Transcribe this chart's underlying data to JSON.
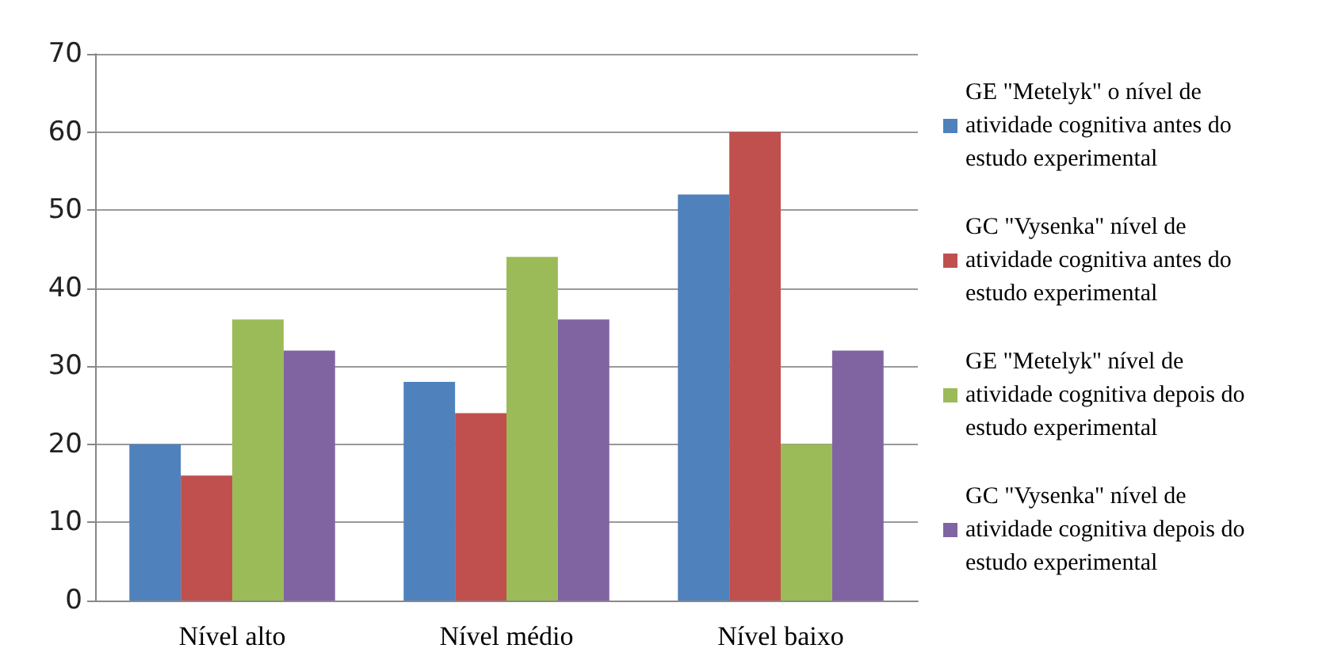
{
  "chart_data": {
    "type": "bar",
    "categories": [
      "Nível alto",
      "Nível médio",
      "Nível baixo"
    ],
    "series": [
      {
        "name": "GE \"Metelyk\" o nível de atividade cognitiva antes do estudo experimental",
        "color": "#4f81bd",
        "values": [
          20,
          28,
          52
        ]
      },
      {
        "name": "GC \"Vysenka\" nível de atividade cognitiva antes do estudo experimental",
        "color": "#c0504d",
        "values": [
          16,
          24,
          60
        ]
      },
      {
        "name": "GE \"Metelyk\" nível de atividade cognitiva depois do estudo experimental",
        "color": "#9bbb59",
        "values": [
          36,
          44,
          20
        ]
      },
      {
        "name": "GC \"Vysenka\" nível de atividade cognitiva depois do estudo experimental",
        "color": "#8064a2",
        "values": [
          32,
          36,
          32
        ]
      }
    ],
    "ylim": [
      0,
      70
    ],
    "yticks": [
      0,
      10,
      20,
      30,
      40,
      50,
      60,
      70
    ],
    "grid": "y",
    "legend": "right"
  }
}
